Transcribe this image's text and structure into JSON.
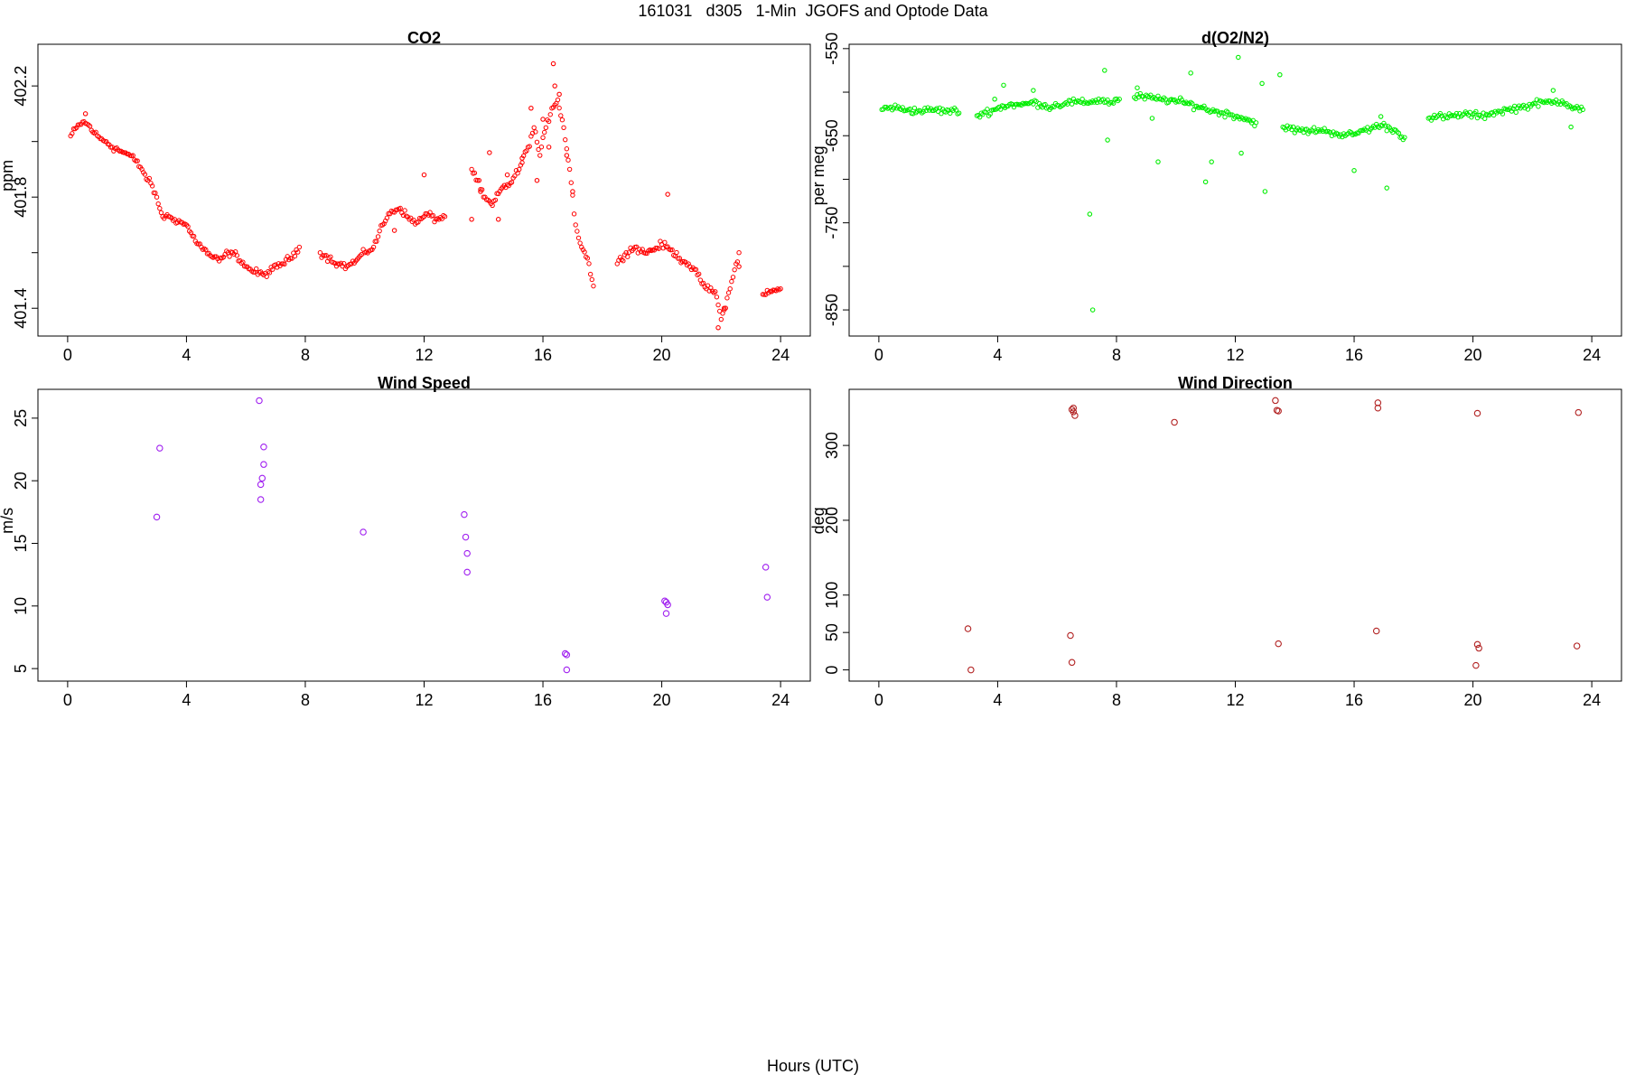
{
  "figure": {
    "title": "161031   d305   1-Min  JGOFS and Optode Data",
    "xlabel": "Hours (UTC)"
  },
  "chart_data": [
    {
      "type": "scatter",
      "title": "CO2",
      "xlabel": "",
      "ylabel": "ppm",
      "xlim": [
        -1,
        25
      ],
      "ylim": [
        401.3,
        402.35
      ],
      "xticks": [
        0,
        4,
        8,
        12,
        16,
        20,
        24
      ],
      "yticks": [
        401.4,
        401.6,
        401.8,
        402.0,
        402.2
      ],
      "ytick_labels": [
        "401.4",
        "",
        "401.8",
        "",
        "402.2"
      ],
      "grid": false,
      "color": "#ff0000",
      "marker_size": 2.2,
      "series": [
        {
          "style": "dense",
          "x": [
            0.1,
            0.3,
            0.5,
            0.7,
            0.9,
            1.1,
            1.3,
            1.5,
            1.7,
            1.9,
            2.1,
            2.3,
            2.5,
            2.7,
            2.85,
            3.2,
            3.4,
            3.6,
            3.8,
            4.0,
            4.2,
            4.5,
            4.8,
            5.1,
            5.4,
            5.7,
            6.0,
            6.3,
            6.6,
            6.9,
            7.2,
            7.5,
            7.8,
            8.5,
            8.8,
            9.1,
            9.4,
            9.7,
            10.0,
            10.3,
            10.6,
            10.9,
            11.2,
            11.5,
            11.8,
            12.1,
            12.4,
            12.7,
            13.6,
            13.8,
            14.0,
            14.3,
            14.6,
            14.9,
            15.2,
            15.5,
            15.7,
            15.9,
            16.1,
            16.3,
            16.5,
            16.7,
            16.9,
            17.1,
            17.3,
            17.5,
            17.7,
            18.5,
            18.8,
            19.1,
            19.4,
            19.7,
            20.0,
            20.3,
            20.6,
            20.9,
            21.2,
            21.5,
            21.8,
            22.0,
            22.3,
            22.6,
            23.4,
            23.7,
            24.0
          ],
          "y": [
            402.02,
            402.05,
            402.07,
            402.06,
            402.03,
            402.01,
            402.0,
            401.98,
            401.97,
            401.96,
            401.95,
            401.93,
            401.9,
            401.86,
            401.84,
            401.73,
            401.73,
            401.72,
            401.71,
            401.7,
            401.66,
            401.62,
            401.59,
            401.57,
            401.6,
            401.59,
            401.55,
            401.53,
            401.52,
            401.54,
            401.56,
            401.58,
            401.62,
            401.6,
            401.58,
            401.56,
            401.55,
            401.57,
            401.6,
            401.62,
            401.7,
            401.75,
            401.76,
            401.72,
            401.71,
            401.74,
            401.72,
            401.73,
            401.9,
            401.86,
            401.8,
            401.77,
            401.83,
            401.85,
            401.9,
            401.98,
            402.05,
            401.95,
            402.05,
            402.12,
            402.15,
            402.05,
            401.9,
            401.7,
            401.62,
            401.58,
            401.48,
            401.56,
            401.6,
            401.62,
            401.6,
            401.61,
            401.63,
            401.61,
            401.58,
            401.56,
            401.52,
            401.47,
            401.46,
            401.36,
            401.47,
            401.6,
            401.45,
            401.46,
            401.47
          ]
        },
        {
          "style": "scatter",
          "x": [
            0.6,
            13.6,
            13.9,
            14.2,
            14.5,
            14.8,
            15.3,
            15.6,
            15.8,
            16.0,
            16.2,
            16.35,
            16.4,
            16.55,
            16.8,
            17.0,
            21.9,
            22.1,
            22.6,
            12.0,
            11.0,
            20.2
          ],
          "y": [
            402.1,
            401.72,
            401.82,
            401.96,
            401.72,
            401.88,
            401.94,
            402.12,
            401.86,
            402.08,
            401.98,
            402.28,
            402.2,
            402.17,
            401.95,
            401.82,
            401.33,
            401.4,
            401.55,
            401.88,
            401.68,
            401.81
          ]
        }
      ]
    },
    {
      "type": "scatter",
      "title": "d(O2/N2)",
      "xlabel": "",
      "ylabel": "per meg",
      "xlim": [
        -1,
        25
      ],
      "ylim": [
        -880,
        -545
      ],
      "xticks": [
        0,
        4,
        8,
        12,
        16,
        20,
        24
      ],
      "yticks": [
        -850,
        -800,
        -750,
        -700,
        -650,
        -600,
        -550
      ],
      "ytick_labels": [
        "-850",
        "",
        "-750",
        "",
        "-650",
        "",
        "-550"
      ],
      "grid": false,
      "color": "#00ee00",
      "marker_size": 2.2,
      "series": [
        {
          "style": "dense",
          "x": [
            0.1,
            0.4,
            0.7,
            1.0,
            1.3,
            1.6,
            1.9,
            2.2,
            2.5,
            2.7,
            3.3,
            3.6,
            3.9,
            4.2,
            4.5,
            4.8,
            5.1,
            5.4,
            5.7,
            6.0,
            6.3,
            6.6,
            6.9,
            7.2,
            7.5,
            7.8,
            8.1,
            8.6,
            8.9,
            9.2,
            9.5,
            9.8,
            10.1,
            10.4,
            10.7,
            11.0,
            11.3,
            11.6,
            11.9,
            12.2,
            12.5,
            12.7,
            13.6,
            13.9,
            14.2,
            14.5,
            14.8,
            15.1,
            15.4,
            15.7,
            16.0,
            16.3,
            16.6,
            16.9,
            17.2,
            17.5,
            17.7,
            18.5,
            18.8,
            19.1,
            19.4,
            19.7,
            20.0,
            20.3,
            20.6,
            20.9,
            21.2,
            21.5,
            21.8,
            22.1,
            22.4,
            22.7,
            23.0,
            23.4,
            23.7
          ],
          "y": [
            -620,
            -617,
            -619,
            -620,
            -622,
            -621,
            -620,
            -622,
            -621,
            -624,
            -627,
            -623,
            -620,
            -616,
            -614,
            -615,
            -612,
            -613,
            -617,
            -615,
            -612,
            -611,
            -613,
            -610,
            -609,
            -612,
            -608,
            -606,
            -605,
            -607,
            -608,
            -609,
            -611,
            -613,
            -616,
            -619,
            -622,
            -624,
            -626,
            -629,
            -633,
            -635,
            -640,
            -643,
            -644,
            -645,
            -643,
            -645,
            -647,
            -650,
            -648,
            -644,
            -641,
            -638,
            -641,
            -647,
            -652,
            -630,
            -628,
            -629,
            -627,
            -625,
            -626,
            -628,
            -624,
            -622,
            -620,
            -618,
            -616,
            -613,
            -612,
            -611,
            -610,
            -618,
            -620
          ]
        },
        {
          "style": "scatter",
          "x": [
            7.1,
            7.2,
            7.6,
            7.7,
            9.2,
            9.4,
            10.5,
            11.0,
            11.2,
            12.1,
            12.2,
            12.9,
            13.0,
            13.5,
            16.0,
            17.1,
            5.2,
            4.2,
            3.9,
            8.7,
            16.9,
            22.7,
            23.3
          ],
          "y": [
            -740,
            -850,
            -575,
            -655,
            -630,
            -680,
            -578,
            -703,
            -680,
            -560,
            -670,
            -590,
            -714,
            -580,
            -690,
            -710,
            -598,
            -592,
            -608,
            -595,
            -628,
            -598,
            -640
          ]
        }
      ]
    },
    {
      "type": "scatter",
      "title": "Wind Speed",
      "xlabel": "",
      "ylabel": "m/s",
      "xlim": [
        -1,
        25
      ],
      "ylim": [
        4,
        27.3
      ],
      "xticks": [
        0,
        4,
        8,
        12,
        16,
        20,
        24
      ],
      "yticks": [
        5,
        10,
        15,
        20,
        25
      ],
      "ytick_labels": [
        "5",
        "10",
        "15",
        "20",
        "25"
      ],
      "grid": false,
      "color": "#a020f0",
      "marker_size": 3.2,
      "series": [
        {
          "style": "scatter",
          "x": [
            3.0,
            3.1,
            6.45,
            6.5,
            6.5,
            6.55,
            6.6,
            6.6,
            9.95,
            13.35,
            13.4,
            13.45,
            13.45,
            16.75,
            16.8,
            16.8,
            20.1,
            20.15,
            20.15,
            20.2,
            23.5,
            23.55
          ],
          "y": [
            17.1,
            22.6,
            26.4,
            19.7,
            18.5,
            20.2,
            21.3,
            22.7,
            15.9,
            17.3,
            15.5,
            14.2,
            12.7,
            6.2,
            6.1,
            4.9,
            10.4,
            10.3,
            9.4,
            10.1,
            13.1,
            10.7
          ]
        }
      ]
    },
    {
      "type": "scatter",
      "title": "Wind Direction",
      "xlabel": "",
      "ylabel": "deg",
      "xlim": [
        -1,
        25
      ],
      "ylim": [
        -15,
        375
      ],
      "xticks": [
        0,
        4,
        8,
        12,
        16,
        20,
        24
      ],
      "yticks": [
        0,
        50,
        100,
        200,
        300
      ],
      "ytick_labels": [
        "0",
        "50",
        "100",
        "200",
        "300"
      ],
      "grid": false,
      "color": "#b22222",
      "marker_size": 3.2,
      "series": [
        {
          "style": "scatter",
          "x": [
            3.0,
            3.1,
            6.45,
            6.5,
            6.5,
            6.55,
            6.55,
            6.6,
            9.95,
            13.35,
            13.4,
            13.45,
            13.45,
            16.75,
            16.8,
            16.8,
            20.1,
            20.15,
            20.15,
            20.2,
            23.5,
            23.55
          ],
          "y": [
            55,
            0,
            46,
            10,
            348,
            345,
            350,
            340,
            331,
            360,
            347,
            346,
            35,
            52,
            357,
            350,
            6,
            343,
            34,
            29,
            32,
            344
          ]
        }
      ]
    }
  ]
}
